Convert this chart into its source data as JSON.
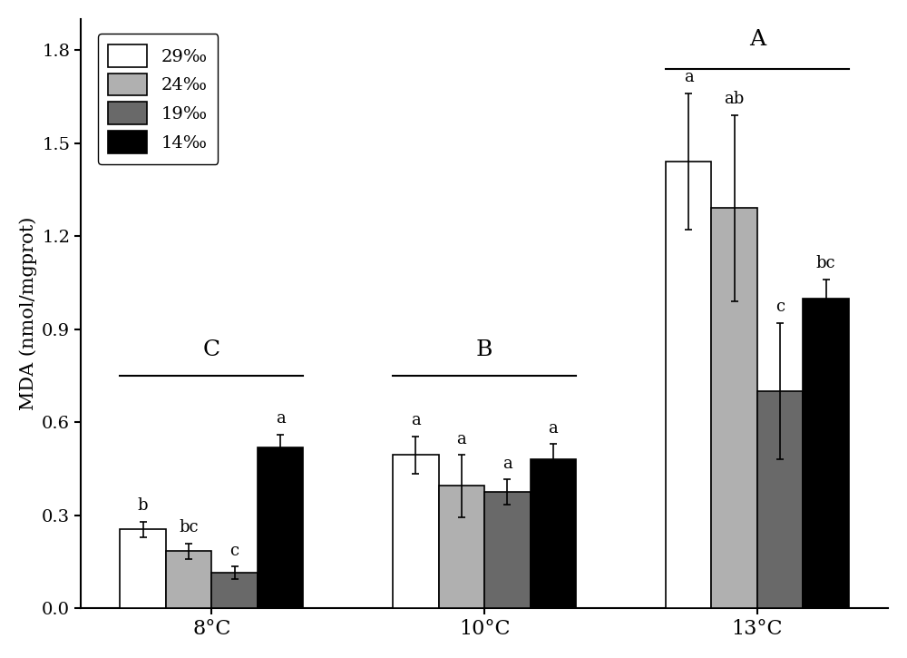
{
  "groups": [
    "8°C",
    "10°C",
    "13°C"
  ],
  "series_labels": [
    "29‰",
    "24‰",
    "19‰",
    "14‰"
  ],
  "bar_colors": [
    "#ffffff",
    "#b0b0b0",
    "#696969",
    "#000000"
  ],
  "bar_edgecolor": "#000000",
  "values": [
    [
      0.255,
      0.185,
      0.115,
      0.52
    ],
    [
      0.495,
      0.395,
      0.375,
      0.48
    ],
    [
      1.44,
      1.29,
      0.7,
      1.0
    ]
  ],
  "errors": [
    [
      0.025,
      0.025,
      0.02,
      0.04
    ],
    [
      0.06,
      0.1,
      0.04,
      0.05
    ],
    [
      0.22,
      0.3,
      0.22,
      0.06
    ]
  ],
  "ylabel": "MDA (nmol/mgprot)",
  "ylim": [
    0.0,
    1.9
  ],
  "yticks": [
    0.0,
    0.3,
    0.6,
    0.9,
    1.2,
    1.5,
    1.8
  ],
  "bar_letters": [
    [
      "b",
      "bc",
      "c",
      "a"
    ],
    [
      "a",
      "a",
      "a",
      "a"
    ],
    [
      "a",
      "ab",
      "c",
      "bc"
    ]
  ],
  "group_letters": [
    "C",
    "B",
    "A"
  ],
  "group_positions": [
    1.0,
    3.5,
    6.0
  ],
  "bar_width": 0.42,
  "letter_fontsize": 13,
  "group_letter_fontsize": 18,
  "axis_fontsize": 15,
  "tick_fontsize": 14
}
